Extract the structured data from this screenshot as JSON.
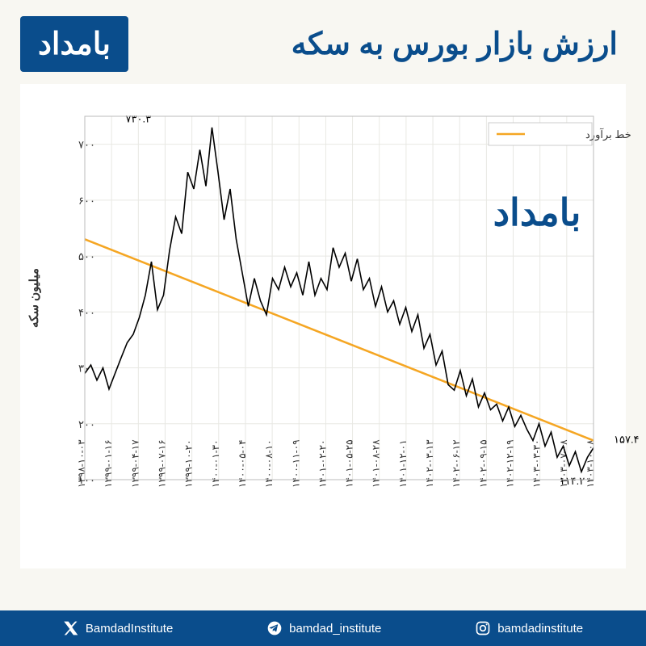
{
  "header": {
    "logo": "بامداد",
    "title": "ارزش بازار بورس به سکه"
  },
  "chart": {
    "type": "line",
    "background_color": "#ffffff",
    "grid_color": "#e8e8e3",
    "series_color": "#000000",
    "trend_color": "#f5a623",
    "ylabel": "میلیون سکه",
    "ylim": [
      100,
      750
    ],
    "yticks": [
      100,
      200,
      300,
      400,
      500,
      600,
      700
    ],
    "ytick_labels": [
      "۱۰۰",
      "۲۰۰",
      "۳۰۰",
      "۴۰۰",
      "۵۰۰",
      "۶۰۰",
      "۷۰۰"
    ],
    "xticks": [
      "۱۳۹۸-۱۰-۰۳",
      "۱۳۹۹-۰۱-۱۶",
      "۱۳۹۹-۰۴-۱۷",
      "۱۳۹۹-۰۷-۱۶",
      "۱۳۹۹-۱۰-۲۰",
      "۱۴۰۰-۰۱-۳۰",
      "۱۴۰۰-۰۵-۰۴",
      "۱۴۰۰-۰۸-۱۰",
      "۱۴۰۰-۱۱-۰۹",
      "۱۴۰۱-۰۲-۲۰",
      "۱۴۰۱-۰۵-۲۵",
      "۱۴۰۱-۰۸-۲۸",
      "۱۴۰۱-۱۲-۰۱",
      "۱۴۰۲-۰۳-۱۳",
      "۱۴۰۲-۰۶-۱۲",
      "۱۴۰۲-۰۹-۱۵",
      "۱۴۰۲-۱۲-۱۹",
      "۱۴۰۳-۰۳-۳۰",
      "۱۴۰۳-۰۷-۰۸",
      "۱۴۰۳-۱۰-۰۸"
    ],
    "legend_label": "خط برآورد",
    "watermark": "بامداد",
    "peak_label": "۷۳۰.۳",
    "peak_x": 2.0,
    "peak_y": 730.3,
    "low_label": "۱۱۴.۲",
    "low_x": 18.2,
    "low_y": 114.2,
    "end_label": "۱۵۷.۴",
    "end_x": 19,
    "end_y": 157.4,
    "trend_start_y": 530,
    "trend_end_y": 170,
    "series": [
      290,
      305,
      278,
      300,
      262,
      290,
      318,
      345,
      360,
      390,
      430,
      490,
      404,
      430,
      510,
      570,
      540,
      650,
      620,
      690,
      625,
      730,
      650,
      565,
      620,
      530,
      470,
      410,
      460,
      420,
      395,
      460,
      440,
      480,
      445,
      470,
      430,
      490,
      430,
      460,
      440,
      515,
      480,
      505,
      455,
      495,
      440,
      460,
      410,
      445,
      400,
      420,
      378,
      408,
      365,
      395,
      335,
      360,
      305,
      330,
      270,
      260,
      295,
      250,
      280,
      230,
      255,
      225,
      235,
      205,
      230,
      195,
      215,
      190,
      170,
      200,
      160,
      185,
      140,
      160,
      125,
      150,
      114,
      140,
      157
    ]
  },
  "footer": {
    "x_handle": "BamdadInstitute",
    "telegram_handle": "bamdad_institute",
    "instagram_handle": "bamdadinstitute"
  }
}
